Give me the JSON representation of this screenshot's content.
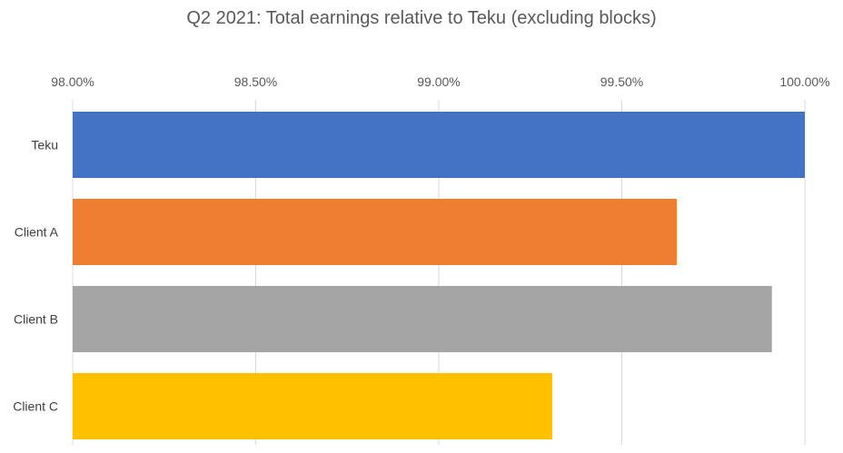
{
  "chart_data": {
    "type": "bar",
    "orientation": "horizontal",
    "title": "Q2 2021: Total earnings relative to Teku (excluding blocks)",
    "categories": [
      "Teku",
      "Client A",
      "Client B",
      "Client C"
    ],
    "values": [
      100.0,
      99.65,
      99.91,
      99.31
    ],
    "colors": [
      "#4472C4",
      "#ED7D31",
      "#A5A5A5",
      "#FFC000"
    ],
    "xlim": [
      98.0,
      100.0
    ],
    "xticks": [
      98.0,
      98.5,
      99.0,
      99.5,
      100.0
    ],
    "xtick_labels": [
      "98.00%",
      "98.50%",
      "99.00%",
      "99.50%",
      "100.00%"
    ],
    "axis_position": "top",
    "grid": true,
    "legend": "none"
  }
}
